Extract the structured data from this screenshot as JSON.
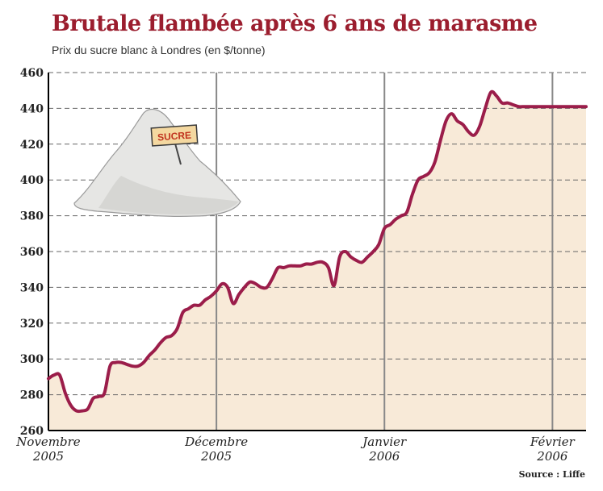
{
  "chart_data": {
    "type": "area",
    "title": "Brutale flambée après 6 ans de marasme",
    "subtitle": "Prix du sucre blanc à Londres (en $/tonne)",
    "source": "Source : Liffe",
    "ylim": [
      260,
      460
    ],
    "yticks": [
      260,
      280,
      300,
      320,
      340,
      360,
      380,
      400,
      420,
      440,
      460
    ],
    "grid": true,
    "xticks": [
      {
        "pos": 0,
        "line1": "Novembre",
        "line2": "2005"
      },
      {
        "pos": 30,
        "line1": "Décembre",
        "line2": "2005"
      },
      {
        "pos": 60,
        "line1": "Janvier",
        "line2": "2006"
      },
      {
        "pos": 90,
        "line1": "Février",
        "line2": "2006"
      }
    ],
    "xlim": [
      0,
      96
    ],
    "x": [
      0,
      1,
      2,
      3,
      4,
      5,
      6,
      7,
      8,
      9,
      10,
      11,
      12,
      13,
      14,
      15,
      16,
      17,
      18,
      19,
      20,
      21,
      22,
      23,
      24,
      25,
      26,
      27,
      28,
      29,
      30,
      31,
      32,
      33,
      34,
      35,
      36,
      37,
      38,
      39,
      40,
      41,
      42,
      43,
      44,
      45,
      46,
      47,
      48,
      49,
      50,
      51,
      52,
      53,
      54,
      55,
      56,
      57,
      58,
      59,
      60,
      61,
      62,
      63,
      64,
      65,
      66,
      67,
      68,
      69,
      70,
      71,
      72,
      73,
      74,
      75,
      76,
      77,
      78,
      79,
      80,
      81,
      82,
      83,
      84,
      85,
      86,
      87,
      88,
      89,
      90,
      91,
      92,
      93,
      94,
      95,
      96
    ],
    "values": [
      289,
      291,
      291,
      281,
      274,
      271,
      271,
      272,
      278,
      279,
      281,
      296,
      298,
      298,
      297,
      296,
      296,
      298,
      302,
      305,
      309,
      312,
      313,
      317,
      326,
      328,
      330,
      330,
      333,
      335,
      338,
      342,
      340,
      331,
      336,
      340,
      343,
      342,
      340,
      340,
      345,
      351,
      351,
      352,
      352,
      352,
      353,
      353,
      354,
      354,
      351,
      341,
      357,
      360,
      357,
      355,
      354,
      357,
      360,
      364,
      373,
      375,
      378,
      380,
      382,
      392,
      400,
      402,
      404,
      410,
      422,
      433,
      437,
      433,
      431,
      427,
      425,
      430,
      440,
      449,
      447,
      443,
      443,
      442,
      441,
      441,
      441,
      441,
      441,
      441,
      441,
      441,
      441,
      441,
      441,
      441,
      441
    ],
    "colors": {
      "line": "#9b1d4a",
      "fill": "#f8ead8",
      "grid": "#666666",
      "axis": "#000000",
      "title": "#9b1d2e"
    },
    "illustration": {
      "label": "SUCRE"
    }
  }
}
